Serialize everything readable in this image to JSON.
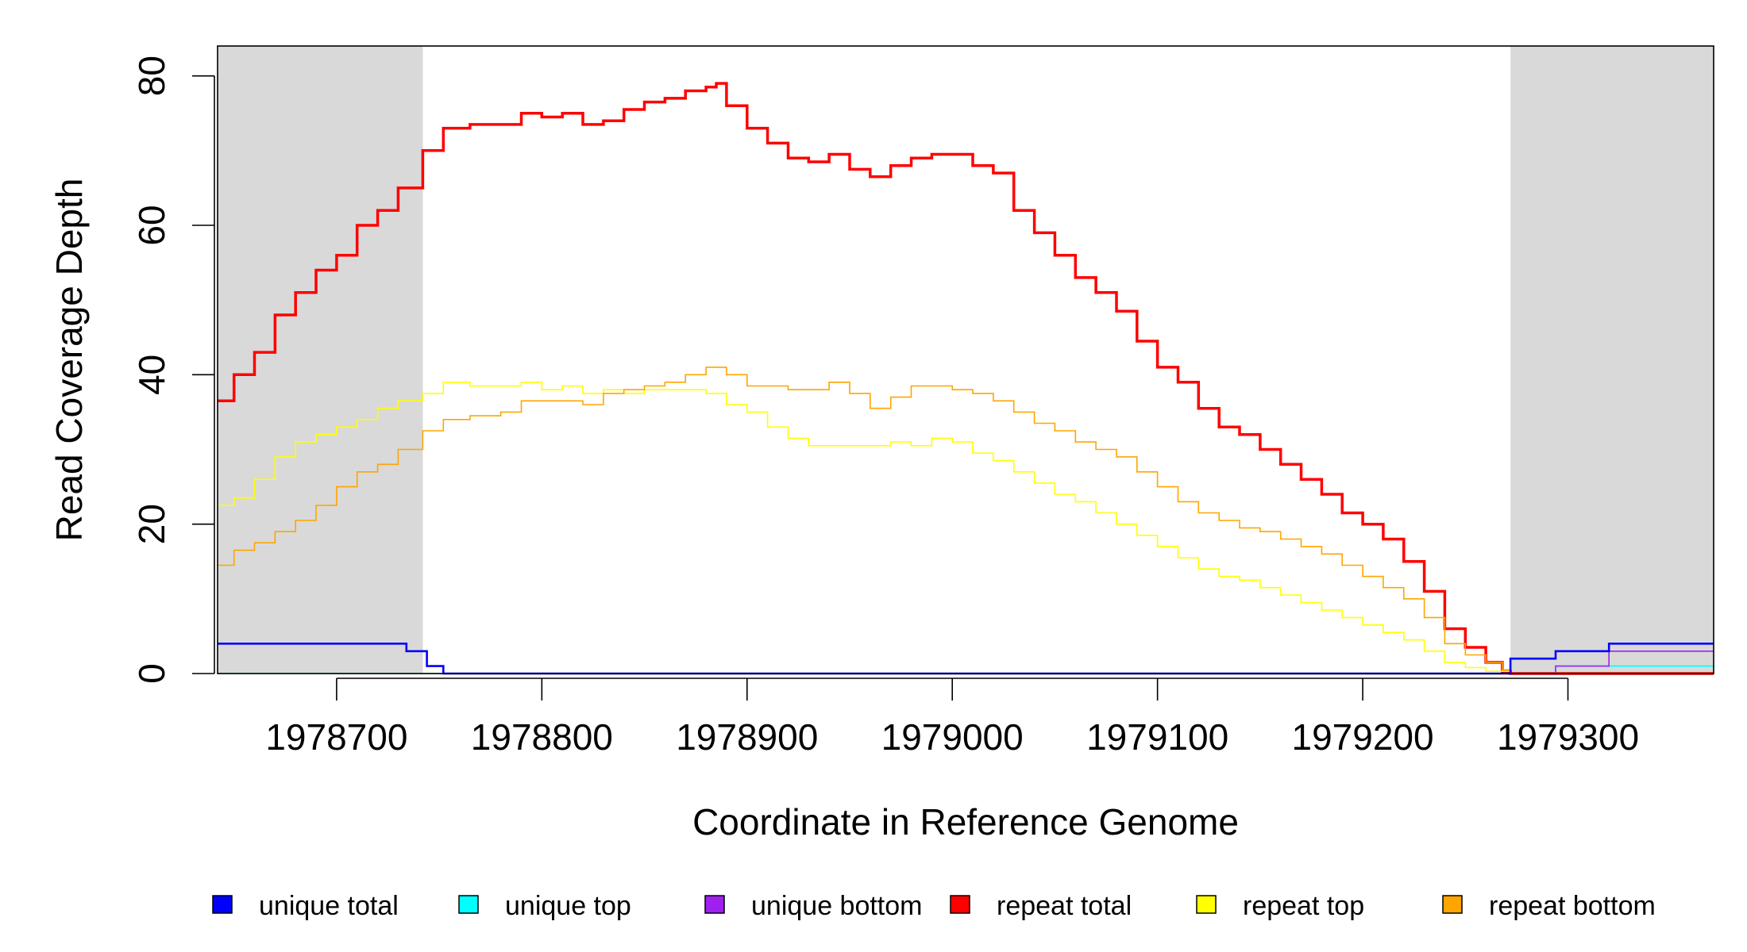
{
  "chart_data": {
    "type": "line",
    "title": "",
    "xlabel": "Coordinate in Reference Genome",
    "ylabel": "Read Coverage Depth",
    "xlim": [
      1978642,
      1979371
    ],
    "ylim": [
      0,
      84
    ],
    "x_ticks": [
      1978700,
      1978800,
      1978900,
      1979000,
      1979100,
      1979200,
      1979300
    ],
    "x_tick_labels": [
      "1978700",
      "1978800",
      "1978900",
      "1979000",
      "1979100",
      "1979200",
      "1979300"
    ],
    "y_ticks": [
      0,
      20,
      40,
      60,
      80
    ],
    "y_tick_labels": [
      "0",
      "20",
      "40",
      "60",
      "80"
    ],
    "shaded_regions": [
      {
        "from": 1978642,
        "to": 1978742,
        "color": "#d9d9d9"
      },
      {
        "from": 1979272,
        "to": 1979371,
        "color": "#d9d9d9"
      }
    ],
    "series": [
      {
        "name": "repeat total",
        "color": "#ff0000",
        "width": 3.5,
        "x": [
          1978642,
          1978650,
          1978660,
          1978670,
          1978680,
          1978690,
          1978700,
          1978710,
          1978720,
          1978730,
          1978742,
          1978752,
          1978765,
          1978780,
          1978790,
          1978800,
          1978810,
          1978820,
          1978830,
          1978840,
          1978850,
          1978860,
          1978870,
          1978880,
          1978885,
          1978890,
          1978900,
          1978910,
          1978920,
          1978930,
          1978940,
          1978950,
          1978960,
          1978970,
          1978980,
          1978990,
          1979000,
          1979010,
          1979020,
          1979030,
          1979040,
          1979050,
          1979060,
          1979070,
          1979080,
          1979090,
          1979100,
          1979110,
          1979120,
          1979130,
          1979140,
          1979150,
          1979160,
          1979170,
          1979180,
          1979190,
          1979200,
          1979210,
          1979220,
          1979230,
          1979240,
          1979250,
          1979260,
          1979268,
          1979272,
          1979371
        ],
        "y": [
          36.5,
          40,
          43,
          48,
          51,
          54,
          56,
          60,
          62,
          65,
          70,
          73,
          73.5,
          73.5,
          75,
          74.5,
          75,
          73.5,
          74,
          75.5,
          76.5,
          77,
          78,
          78.5,
          79,
          76,
          73,
          71,
          69,
          68.5,
          69.5,
          67.5,
          66.5,
          68,
          69,
          69.5,
          69.5,
          68,
          67,
          62,
          59,
          56,
          53,
          51,
          48.5,
          44.5,
          41,
          39,
          35.5,
          33,
          32,
          30,
          28,
          26,
          24,
          21.5,
          20,
          18,
          15,
          11,
          6,
          3.5,
          1.5,
          0.3,
          0,
          0
        ]
      },
      {
        "name": "repeat top",
        "color": "#ffff00",
        "width": 1.6,
        "x": [
          1978642,
          1978650,
          1978660,
          1978670,
          1978680,
          1978690,
          1978700,
          1978710,
          1978720,
          1978730,
          1978742,
          1978752,
          1978765,
          1978780,
          1978790,
          1978800,
          1978810,
          1978820,
          1978830,
          1978840,
          1978850,
          1978860,
          1978870,
          1978880,
          1978890,
          1978900,
          1978910,
          1978920,
          1978930,
          1978940,
          1978950,
          1978960,
          1978970,
          1978980,
          1978990,
          1979000,
          1979010,
          1979020,
          1979030,
          1979040,
          1979050,
          1979060,
          1979070,
          1979080,
          1979090,
          1979100,
          1979110,
          1979120,
          1979130,
          1979140,
          1979150,
          1979160,
          1979170,
          1979180,
          1979190,
          1979200,
          1979210,
          1979220,
          1979230,
          1979240,
          1979250,
          1979260,
          1979272,
          1979371
        ],
        "y": [
          22.5,
          23.5,
          26,
          29,
          31,
          32,
          33,
          34,
          35.5,
          36.5,
          37.5,
          39,
          38.5,
          38.5,
          39,
          38,
          38.5,
          37.5,
          38,
          37.5,
          38,
          38,
          38,
          37.5,
          36,
          35,
          33,
          31.5,
          30.5,
          30.5,
          30.5,
          30.5,
          31,
          30.5,
          31.5,
          31,
          29.5,
          28.5,
          27,
          25.5,
          24,
          23,
          21.5,
          20,
          18.5,
          17,
          15.5,
          14,
          13,
          12.5,
          11.5,
          10.5,
          9.5,
          8.5,
          7.5,
          6.5,
          5.5,
          4.5,
          3,
          1.5,
          0.8,
          0.3,
          0,
          0
        ]
      },
      {
        "name": "repeat bottom",
        "color": "#ffa500",
        "width": 1.6,
        "x": [
          1978642,
          1978650,
          1978660,
          1978670,
          1978680,
          1978690,
          1978700,
          1978710,
          1978720,
          1978730,
          1978742,
          1978752,
          1978765,
          1978780,
          1978790,
          1978800,
          1978810,
          1978820,
          1978830,
          1978840,
          1978850,
          1978860,
          1978870,
          1978880,
          1978890,
          1978900,
          1978910,
          1978920,
          1978930,
          1978940,
          1978950,
          1978960,
          1978970,
          1978980,
          1978990,
          1979000,
          1979010,
          1979020,
          1979030,
          1979040,
          1979050,
          1979060,
          1979070,
          1979080,
          1979090,
          1979100,
          1979110,
          1979120,
          1979130,
          1979140,
          1979150,
          1979160,
          1979170,
          1979180,
          1979190,
          1979200,
          1979210,
          1979220,
          1979230,
          1979240,
          1979250,
          1979260,
          1979268,
          1979272,
          1979371
        ],
        "y": [
          14.5,
          16.5,
          17.5,
          19,
          20.5,
          22.5,
          25,
          27,
          28,
          30,
          32.5,
          34,
          34.5,
          35,
          36.5,
          36.5,
          36.5,
          36,
          37.5,
          38,
          38.5,
          39,
          40,
          41,
          40,
          38.5,
          38.5,
          38,
          38,
          39,
          37.5,
          35.5,
          37,
          38.5,
          38.5,
          38,
          37.5,
          36.5,
          35,
          33.5,
          32.5,
          31,
          30,
          29,
          27,
          25,
          23,
          21.5,
          20.5,
          19.5,
          19,
          18,
          17,
          16,
          14.5,
          13,
          11.5,
          10,
          7.5,
          4,
          2.5,
          1.5,
          0.5,
          0,
          0
        ]
      },
      {
        "name": "unique top",
        "color": "#00ffff",
        "width": 1.6,
        "x": [
          1978642,
          1979272,
          1979294,
          1979371
        ],
        "y": [
          0,
          0,
          1,
          1
        ]
      },
      {
        "name": "unique bottom",
        "color": "#a020f0",
        "width": 1.6,
        "x": [
          1978642,
          1978734,
          1978744,
          1978752,
          1979272,
          1979294,
          1979320,
          1979371
        ],
        "y": [
          4,
          3,
          1,
          0,
          0,
          1,
          3,
          3
        ]
      },
      {
        "name": "unique total",
        "color": "#0000ff",
        "width": 2.6,
        "x": [
          1978642,
          1978734,
          1978744,
          1978752,
          1979272,
          1979294,
          1979320,
          1979371
        ],
        "y": [
          4,
          3,
          1,
          0,
          2,
          3,
          4,
          4
        ]
      }
    ],
    "legend": {
      "position": "bottom",
      "items": [
        {
          "label": "unique total",
          "color": "#0000ff"
        },
        {
          "label": "unique top",
          "color": "#00ffff"
        },
        {
          "label": "unique bottom",
          "color": "#a020f0"
        },
        {
          "label": "repeat total",
          "color": "#ff0000"
        },
        {
          "label": "repeat top",
          "color": "#ffff00"
        },
        {
          "label": "repeat bottom",
          "color": "#ffa500"
        }
      ]
    }
  }
}
